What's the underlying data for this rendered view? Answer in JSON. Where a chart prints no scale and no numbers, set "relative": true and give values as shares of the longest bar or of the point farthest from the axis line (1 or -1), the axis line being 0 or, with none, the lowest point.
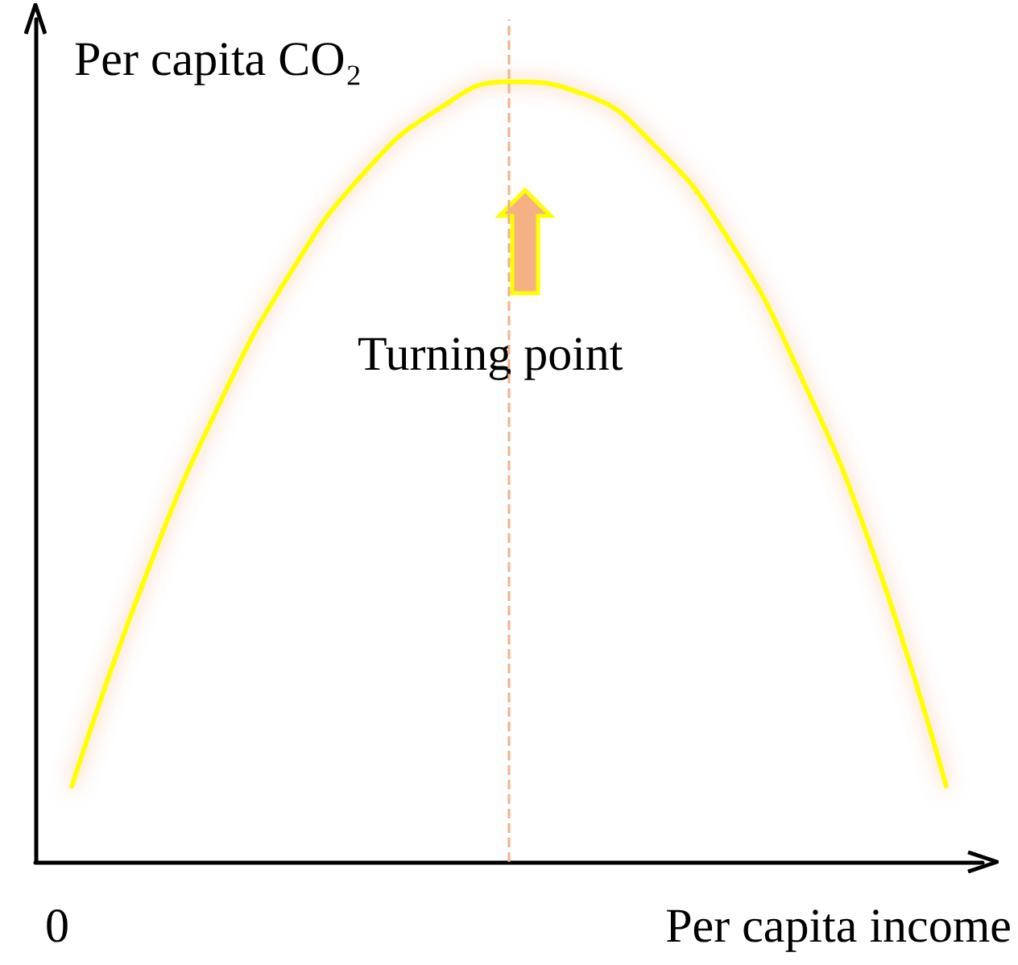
{
  "chart_data": {
    "type": "line",
    "relative": true,
    "xlabel": "Per capita income",
    "ylabel": "Per capita CO₂",
    "categories": [
      null,
      null,
      null,
      null,
      null,
      null,
      null,
      null,
      null,
      null,
      null,
      null,
      null
    ],
    "series": [
      {
        "color": "#ffff00",
        "values": [
          0.097,
          0.363,
          0.582,
          0.755,
          0.882,
          0.963,
          1,
          0.985,
          0.918,
          0.8,
          0.624,
          0.396,
          0.097
        ]
      }
    ],
    "annotations": [
      "Turning point",
      "0"
    ],
    "marker": "none"
  }
}
